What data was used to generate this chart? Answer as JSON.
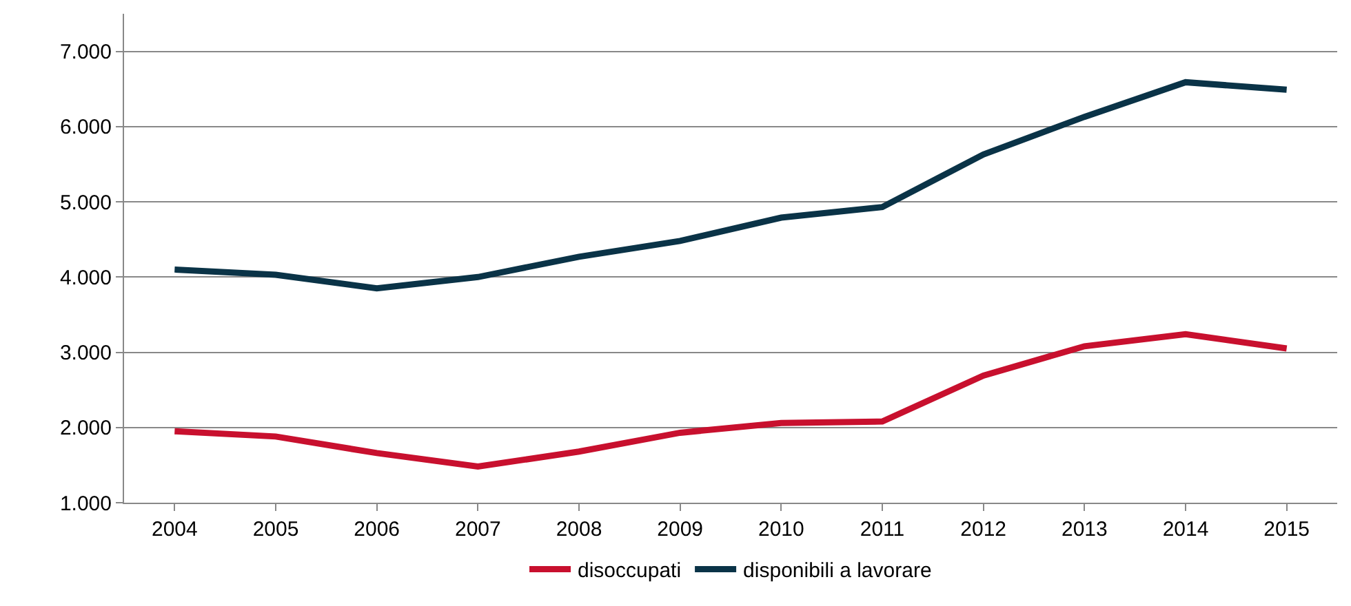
{
  "chart_data": {
    "type": "line",
    "categories": [
      "2004",
      "2005",
      "2006",
      "2007",
      "2008",
      "2009",
      "2010",
      "2011",
      "2012",
      "2013",
      "2014",
      "2015"
    ],
    "series": [
      {
        "name": "disoccupati",
        "color": "#c8102e",
        "values": [
          1950,
          1880,
          1660,
          1480,
          1680,
          1930,
          2060,
          2080,
          2690,
          3080,
          3240,
          3050
        ]
      },
      {
        "name": "disponibili a lavorare",
        "color": "#0a3347",
        "values": [
          4100,
          4030,
          3850,
          4000,
          4270,
          4480,
          4790,
          4930,
          5630,
          6130,
          6590,
          6490
        ]
      }
    ],
    "ylim": [
      1000,
      7500
    ],
    "yticks": [
      {
        "value": 1000,
        "label": "1.000"
      },
      {
        "value": 2000,
        "label": "2.000"
      },
      {
        "value": 3000,
        "label": "3.000"
      },
      {
        "value": 4000,
        "label": "4.000"
      },
      {
        "value": 5000,
        "label": "5.000"
      },
      {
        "value": 6000,
        "label": "6.000"
      },
      {
        "value": 7000,
        "label": "7.000"
      }
    ],
    "grid": "y",
    "legend": "bottom",
    "marker": "none",
    "line_style": "solid"
  }
}
